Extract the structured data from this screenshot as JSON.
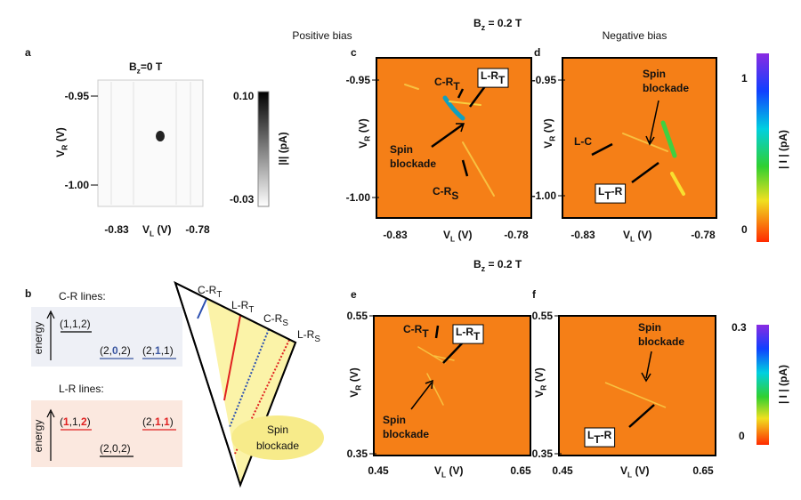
{
  "headers": {
    "positive": "Positive bias",
    "negative": "Negative bias",
    "field_top": [
      "B",
      "z",
      " = 0.2 T"
    ],
    "field_bottom": [
      "B",
      "z",
      " = 0.2 T"
    ]
  },
  "panel_a": {
    "label": "a",
    "title": [
      "B",
      "z",
      "=0 T"
    ],
    "yticks": [
      "-0.95",
      "-1.00"
    ],
    "xticks": [
      "-0.83",
      "-0.78"
    ],
    "xlabel": [
      "V",
      "L",
      " (V)"
    ],
    "ylabel": [
      "V",
      "R",
      " (V)"
    ],
    "colorbar": {
      "max": "0.10",
      "min": "-0.03",
      "label": "|I| (pA)"
    }
  },
  "panel_b": {
    "label": "b",
    "cr": {
      "title": "C-R lines:",
      "axis": "energy",
      "states": [
        [
          "(1,1,2)"
        ],
        [
          "(2,",
          "0",
          ",2)"
        ],
        [
          "(2,",
          "1",
          ",1)"
        ]
      ]
    },
    "lr": {
      "title": "L-R lines:",
      "axis": "energy",
      "states": [
        [
          "(",
          "1",
          ",1,",
          "2",
          ")"
        ],
        [
          "(2,0,2)"
        ],
        [
          "(2,",
          "1",
          ",",
          "1",
          ")"
        ]
      ]
    },
    "lines": [
      [
        "C-R",
        "T"
      ],
      [
        "L-R",
        "T"
      ],
      [
        "C-R",
        "S"
      ],
      [
        "L-R",
        "S"
      ]
    ],
    "bubble": [
      "Spin",
      "blockade"
    ]
  },
  "panel_c": {
    "label": "c",
    "yticks": [
      "-0.95",
      "-1.00"
    ],
    "xticks": [
      "-0.83",
      "-0.78"
    ],
    "xlabel": [
      "V",
      "L",
      " (V)"
    ],
    "ylabel": [
      "V",
      "R",
      " (V)"
    ],
    "cr_t": [
      "C-R",
      "T"
    ],
    "lr_t": [
      "L-R",
      "T"
    ],
    "spin": [
      "Spin",
      "blockade"
    ],
    "cr_s": [
      "C-R",
      "S"
    ]
  },
  "panel_d": {
    "label": "d",
    "yticks": [
      "-0.95",
      "-1.00"
    ],
    "xticks": [
      "-0.83",
      "-0.78"
    ],
    "xlabel": [
      "V",
      "L",
      " (V)"
    ],
    "ylabel": [
      "V",
      "R",
      " (V)"
    ],
    "spin": [
      "Spin",
      "blockade"
    ],
    "lc": [
      "L-C"
    ],
    "ltr": [
      "L",
      "T",
      "-R"
    ],
    "colorbar": {
      "max": "1",
      "min": "0",
      "label": "| I | (pA)"
    }
  },
  "panel_e": {
    "label": "e",
    "yticks": [
      "0.55",
      "0.35"
    ],
    "xticks": [
      "0.45",
      "0.65"
    ],
    "xlabel": [
      "V",
      "L",
      " (V)"
    ],
    "ylabel": [
      "V",
      "R",
      " (V)"
    ],
    "cr_t": [
      "C-R",
      "T"
    ],
    "lr_t": [
      "L-R",
      "T"
    ],
    "spin": [
      "Spin",
      "blockade"
    ]
  },
  "panel_f": {
    "label": "f",
    "yticks": [
      "0.55",
      "0.35"
    ],
    "xticks": [
      "0.45",
      "0.65"
    ],
    "xlabel": [
      "V",
      "L",
      " (V)"
    ],
    "ylabel": [
      "V",
      "R",
      " (V)"
    ],
    "spin": [
      "Spin",
      "blockade"
    ],
    "ltr": [
      "L",
      "T",
      "-R"
    ],
    "colorbar": {
      "max": "0.3",
      "min": "0",
      "label": "| I | (pA)"
    }
  }
}
